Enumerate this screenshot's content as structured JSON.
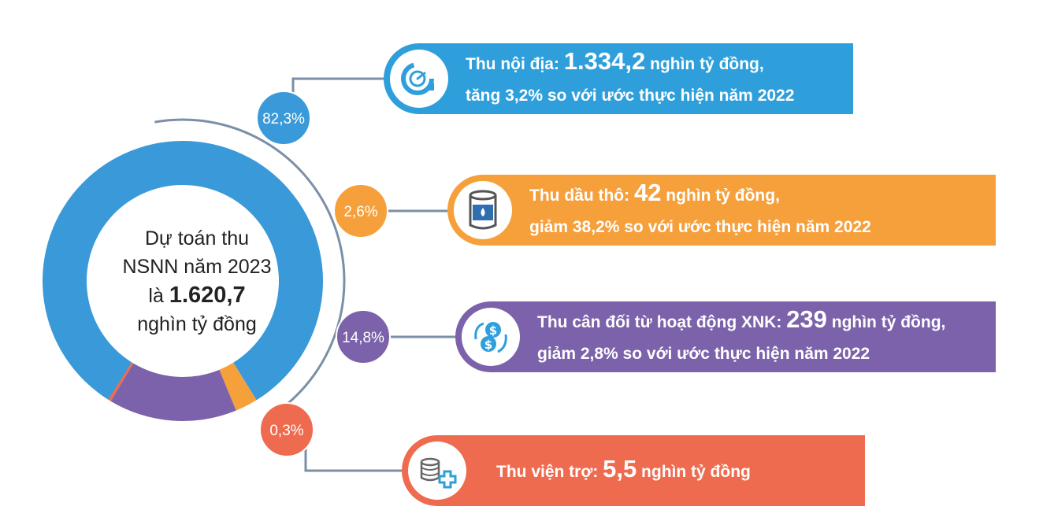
{
  "colors": {
    "blue": "#3a9ad9",
    "orange": "#f6a03c",
    "purple": "#7b62aa",
    "red": "#ef6b4f",
    "line": "#7b8fa6"
  },
  "center": {
    "line1": "Dự toán thu",
    "line2": "NSNN năm 2023",
    "line3_pre": "là ",
    "line3_num": "1.620,7",
    "line4": "nghìn tỷ đồng"
  },
  "chart_data": {
    "type": "pie",
    "categories": [
      "Thu nội địa",
      "Thu dầu thô",
      "Thu cân đối từ hoạt động XNK",
      "Thu viện trợ"
    ],
    "values": [
      82.3,
      2.6,
      14.8,
      0.3
    ],
    "value_labels": [
      "82,3%",
      "2,6%",
      "14,8%",
      "0,3%"
    ],
    "slice_colors": [
      "#3a9ad9",
      "#f6a03c",
      "#7b62aa",
      "#ef6b4f"
    ],
    "title": "",
    "total": "1.620,7"
  },
  "cards": [
    {
      "icon": "gauge-arrow-icon",
      "l1_pre": "Thu nội địa: ",
      "l1_num": "1.334,2",
      "l1_post": " nghìn tỷ đồng,",
      "l2": "tăng 3,2% so với ước thực hiện năm 2022"
    },
    {
      "icon": "oil-barrel-icon",
      "l1_pre": "Thu dầu thô: ",
      "l1_num": "42",
      "l1_post": " nghìn tỷ đồng,",
      "l2": "giảm 38,2% so với ước thực hiện năm 2022"
    },
    {
      "icon": "dollar-exchange-icon",
      "l1_pre": "Thu cân đối từ hoạt động XNK: ",
      "l1_num": "239",
      "l1_post": " nghìn tỷ đồng,",
      "l2": "giảm 2,8% so với ước thực hiện năm 2022"
    },
    {
      "icon": "coins-plus-icon",
      "l1_pre": "Thu viện trợ: ",
      "l1_num": "5,5",
      "l1_post": " nghìn tỷ đồng",
      "l2": ""
    }
  ]
}
